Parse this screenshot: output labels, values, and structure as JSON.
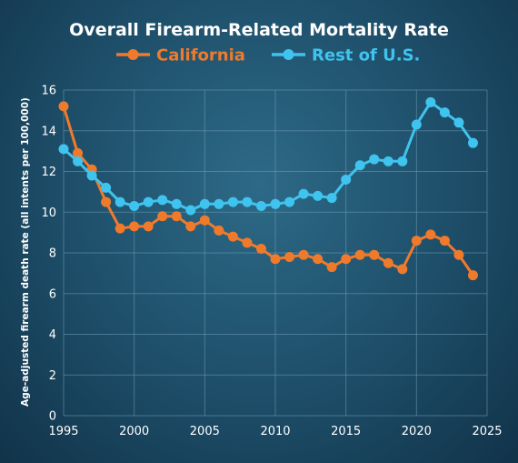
{
  "chart_data": {
    "type": "line",
    "title": "Overall Firearm-Related Mortality Rate",
    "xlabel": "",
    "ylabel": "Age-adjusted firearm death rate (all intents per 100,000)",
    "xlim": [
      1995,
      2025
    ],
    "ylim": [
      0,
      16
    ],
    "xticks": [
      1995,
      2000,
      2005,
      2010,
      2015,
      2020,
      2025
    ],
    "yticks": [
      0,
      2,
      4,
      6,
      8,
      10,
      12,
      14,
      16
    ],
    "grid": true,
    "legend_position": "top-center",
    "x": [
      1995,
      1996,
      1997,
      1998,
      1999,
      2000,
      2001,
      2002,
      2003,
      2004,
      2005,
      2006,
      2007,
      2008,
      2009,
      2010,
      2011,
      2012,
      2013,
      2014,
      2015,
      2016,
      2017,
      2018,
      2019,
      2020,
      2021,
      2022,
      2023,
      2024
    ],
    "series": [
      {
        "name": "California",
        "color": "#f07a2b",
        "values": [
          15.2,
          12.9,
          12.1,
          10.5,
          9.2,
          9.3,
          9.3,
          9.8,
          9.8,
          9.3,
          9.6,
          9.1,
          8.8,
          8.5,
          8.2,
          7.7,
          7.8,
          7.9,
          7.7,
          7.3,
          7.7,
          7.9,
          7.9,
          7.5,
          7.2,
          8.6,
          8.9,
          8.6,
          7.9,
          6.9
        ]
      },
      {
        "name": "Rest of U.S.",
        "color": "#3fc3ef",
        "values": [
          13.1,
          12.5,
          11.8,
          11.2,
          10.5,
          10.3,
          10.5,
          10.6,
          10.4,
          10.1,
          10.4,
          10.4,
          10.5,
          10.5,
          10.3,
          10.4,
          10.5,
          10.9,
          10.8,
          10.7,
          11.6,
          12.3,
          12.6,
          12.5,
          12.5,
          14.3,
          15.4,
          14.9,
          14.4,
          13.4
        ]
      }
    ]
  }
}
